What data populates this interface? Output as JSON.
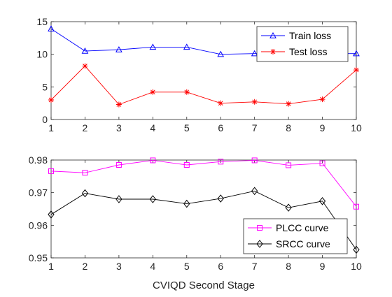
{
  "chart_data": [
    {
      "type": "line",
      "x": [
        1,
        2,
        3,
        4,
        5,
        6,
        7,
        8,
        9,
        10
      ],
      "xlim": [
        1,
        10
      ],
      "ylim": [
        0,
        15
      ],
      "xticks": [
        "1",
        "2",
        "3",
        "4",
        "5",
        "6",
        "7",
        "8",
        "9",
        "10"
      ],
      "yticks": [
        "0",
        "5",
        "10",
        "15"
      ],
      "xlabel": "",
      "ylabel": "",
      "title": "",
      "legend_position": "top-right",
      "grid": false,
      "series": [
        {
          "name": "Train loss",
          "color": "#0000ff",
          "marker": "triangle",
          "values": [
            13.9,
            10.5,
            10.7,
            11.1,
            11.1,
            10.0,
            10.1,
            10.1,
            10.1,
            10.1
          ]
        },
        {
          "name": "Test loss",
          "color": "#ff0000",
          "marker": "asterisk",
          "values": [
            3.0,
            8.2,
            2.3,
            4.2,
            4.2,
            2.5,
            2.7,
            2.4,
            3.1,
            7.6
          ]
        }
      ]
    },
    {
      "type": "line",
      "x": [
        1,
        2,
        3,
        4,
        5,
        6,
        7,
        8,
        9,
        10
      ],
      "xlim": [
        1,
        10
      ],
      "ylim": [
        0.95,
        0.98
      ],
      "xticks": [
        "1",
        "2",
        "3",
        "4",
        "5",
        "6",
        "7",
        "8",
        "9",
        "10"
      ],
      "yticks": [
        "0.95",
        "0.96",
        "0.97",
        "0.98"
      ],
      "xlabel": "CVIQD Second Stage",
      "ylabel": "",
      "title": "",
      "legend_position": "bottom-right",
      "grid": false,
      "series": [
        {
          "name": "PLCC curve",
          "color": "#ff00ff",
          "marker": "square",
          "values": [
            0.9766,
            0.9761,
            0.9785,
            0.9799,
            0.9785,
            0.9795,
            0.9799,
            0.9784,
            0.979,
            0.9657
          ]
        },
        {
          "name": "SRCC curve",
          "color": "#000000",
          "marker": "diamond",
          "values": [
            0.9633,
            0.9698,
            0.968,
            0.968,
            0.9666,
            0.9682,
            0.9705,
            0.9654,
            0.9674,
            0.9525
          ]
        }
      ]
    }
  ]
}
